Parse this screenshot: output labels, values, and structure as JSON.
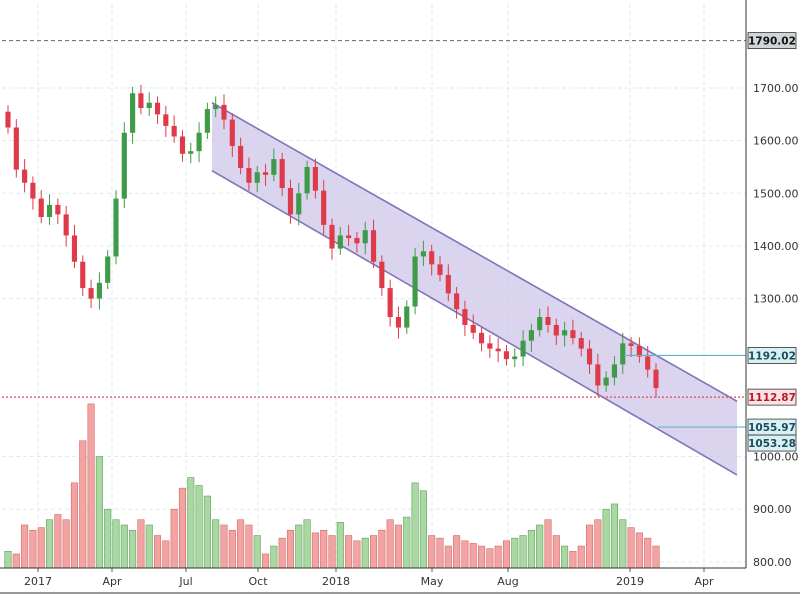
{
  "chart_data": {
    "type": "candlestick",
    "title": "",
    "xlabel": "",
    "ylabel": "",
    "ylim": [
      765,
      1830
    ],
    "x_tick_labels": [
      "2017",
      "Apr",
      "Jul",
      "Oct",
      "2018",
      "May",
      "Aug",
      "2019",
      "Apr"
    ],
    "y_tick_labels": [
      "1700.00",
      "1600.00",
      "1500.00",
      "1400.00",
      "1300.00",
      "900.00",
      "800.00"
    ],
    "y_tick_values": [
      1700,
      1600,
      1500,
      1400,
      1300,
      900,
      800
    ],
    "price_labels": {
      "top_level": "1790.02",
      "resistance": "1192.02",
      "current": "1112.87",
      "channel_low_1": "1055.97",
      "channel_low_2": "1053.28",
      "lower_axis": "1000.00"
    },
    "levels": {
      "top_level": 1790.02,
      "resistance": 1192.02,
      "current": 1112.87,
      "channel_low_1": 1055.97,
      "channel_low_2": 1053.28
    },
    "channel": {
      "upper_start": 1672,
      "upper_end": 1105,
      "lower_start": 1543,
      "lower_end": 965
    },
    "closes": [
      1625,
      1545,
      1520,
      1490,
      1455,
      1478,
      1460,
      1420,
      1370,
      1320,
      1300,
      1330,
      1380,
      1490,
      1615,
      1690,
      1662,
      1672,
      1650,
      1628,
      1608,
      1575,
      1580,
      1615,
      1660,
      1668,
      1640,
      1590,
      1548,
      1520,
      1540,
      1535,
      1565,
      1510,
      1460,
      1500,
      1550,
      1505,
      1440,
      1395,
      1420,
      1415,
      1405,
      1430,
      1370,
      1320,
      1265,
      1245,
      1285,
      1380,
      1390,
      1365,
      1345,
      1310,
      1280,
      1250,
      1235,
      1215,
      1205,
      1200,
      1185,
      1190,
      1220,
      1240,
      1265,
      1250,
      1230,
      1240,
      1225,
      1205,
      1175,
      1135,
      1150,
      1175,
      1215,
      1210,
      1190,
      1165,
      1130
    ],
    "volumes": [
      820,
      815,
      870,
      860,
      865,
      880,
      890,
      880,
      950,
      1030,
      1100,
      1000,
      900,
      880,
      870,
      860,
      880,
      870,
      850,
      840,
      900,
      940,
      960,
      945,
      925,
      880,
      870,
      860,
      880,
      870,
      850,
      815,
      830,
      845,
      860,
      870,
      880,
      855,
      860,
      850,
      875,
      850,
      840,
      845,
      850,
      860,
      880,
      870,
      885,
      950,
      935,
      850,
      845,
      830,
      850,
      840,
      835,
      830,
      825,
      830,
      840,
      845,
      850,
      860,
      870,
      880,
      850,
      830,
      820,
      830,
      870,
      880,
      900,
      910,
      880,
      865,
      855,
      845,
      830
    ]
  }
}
